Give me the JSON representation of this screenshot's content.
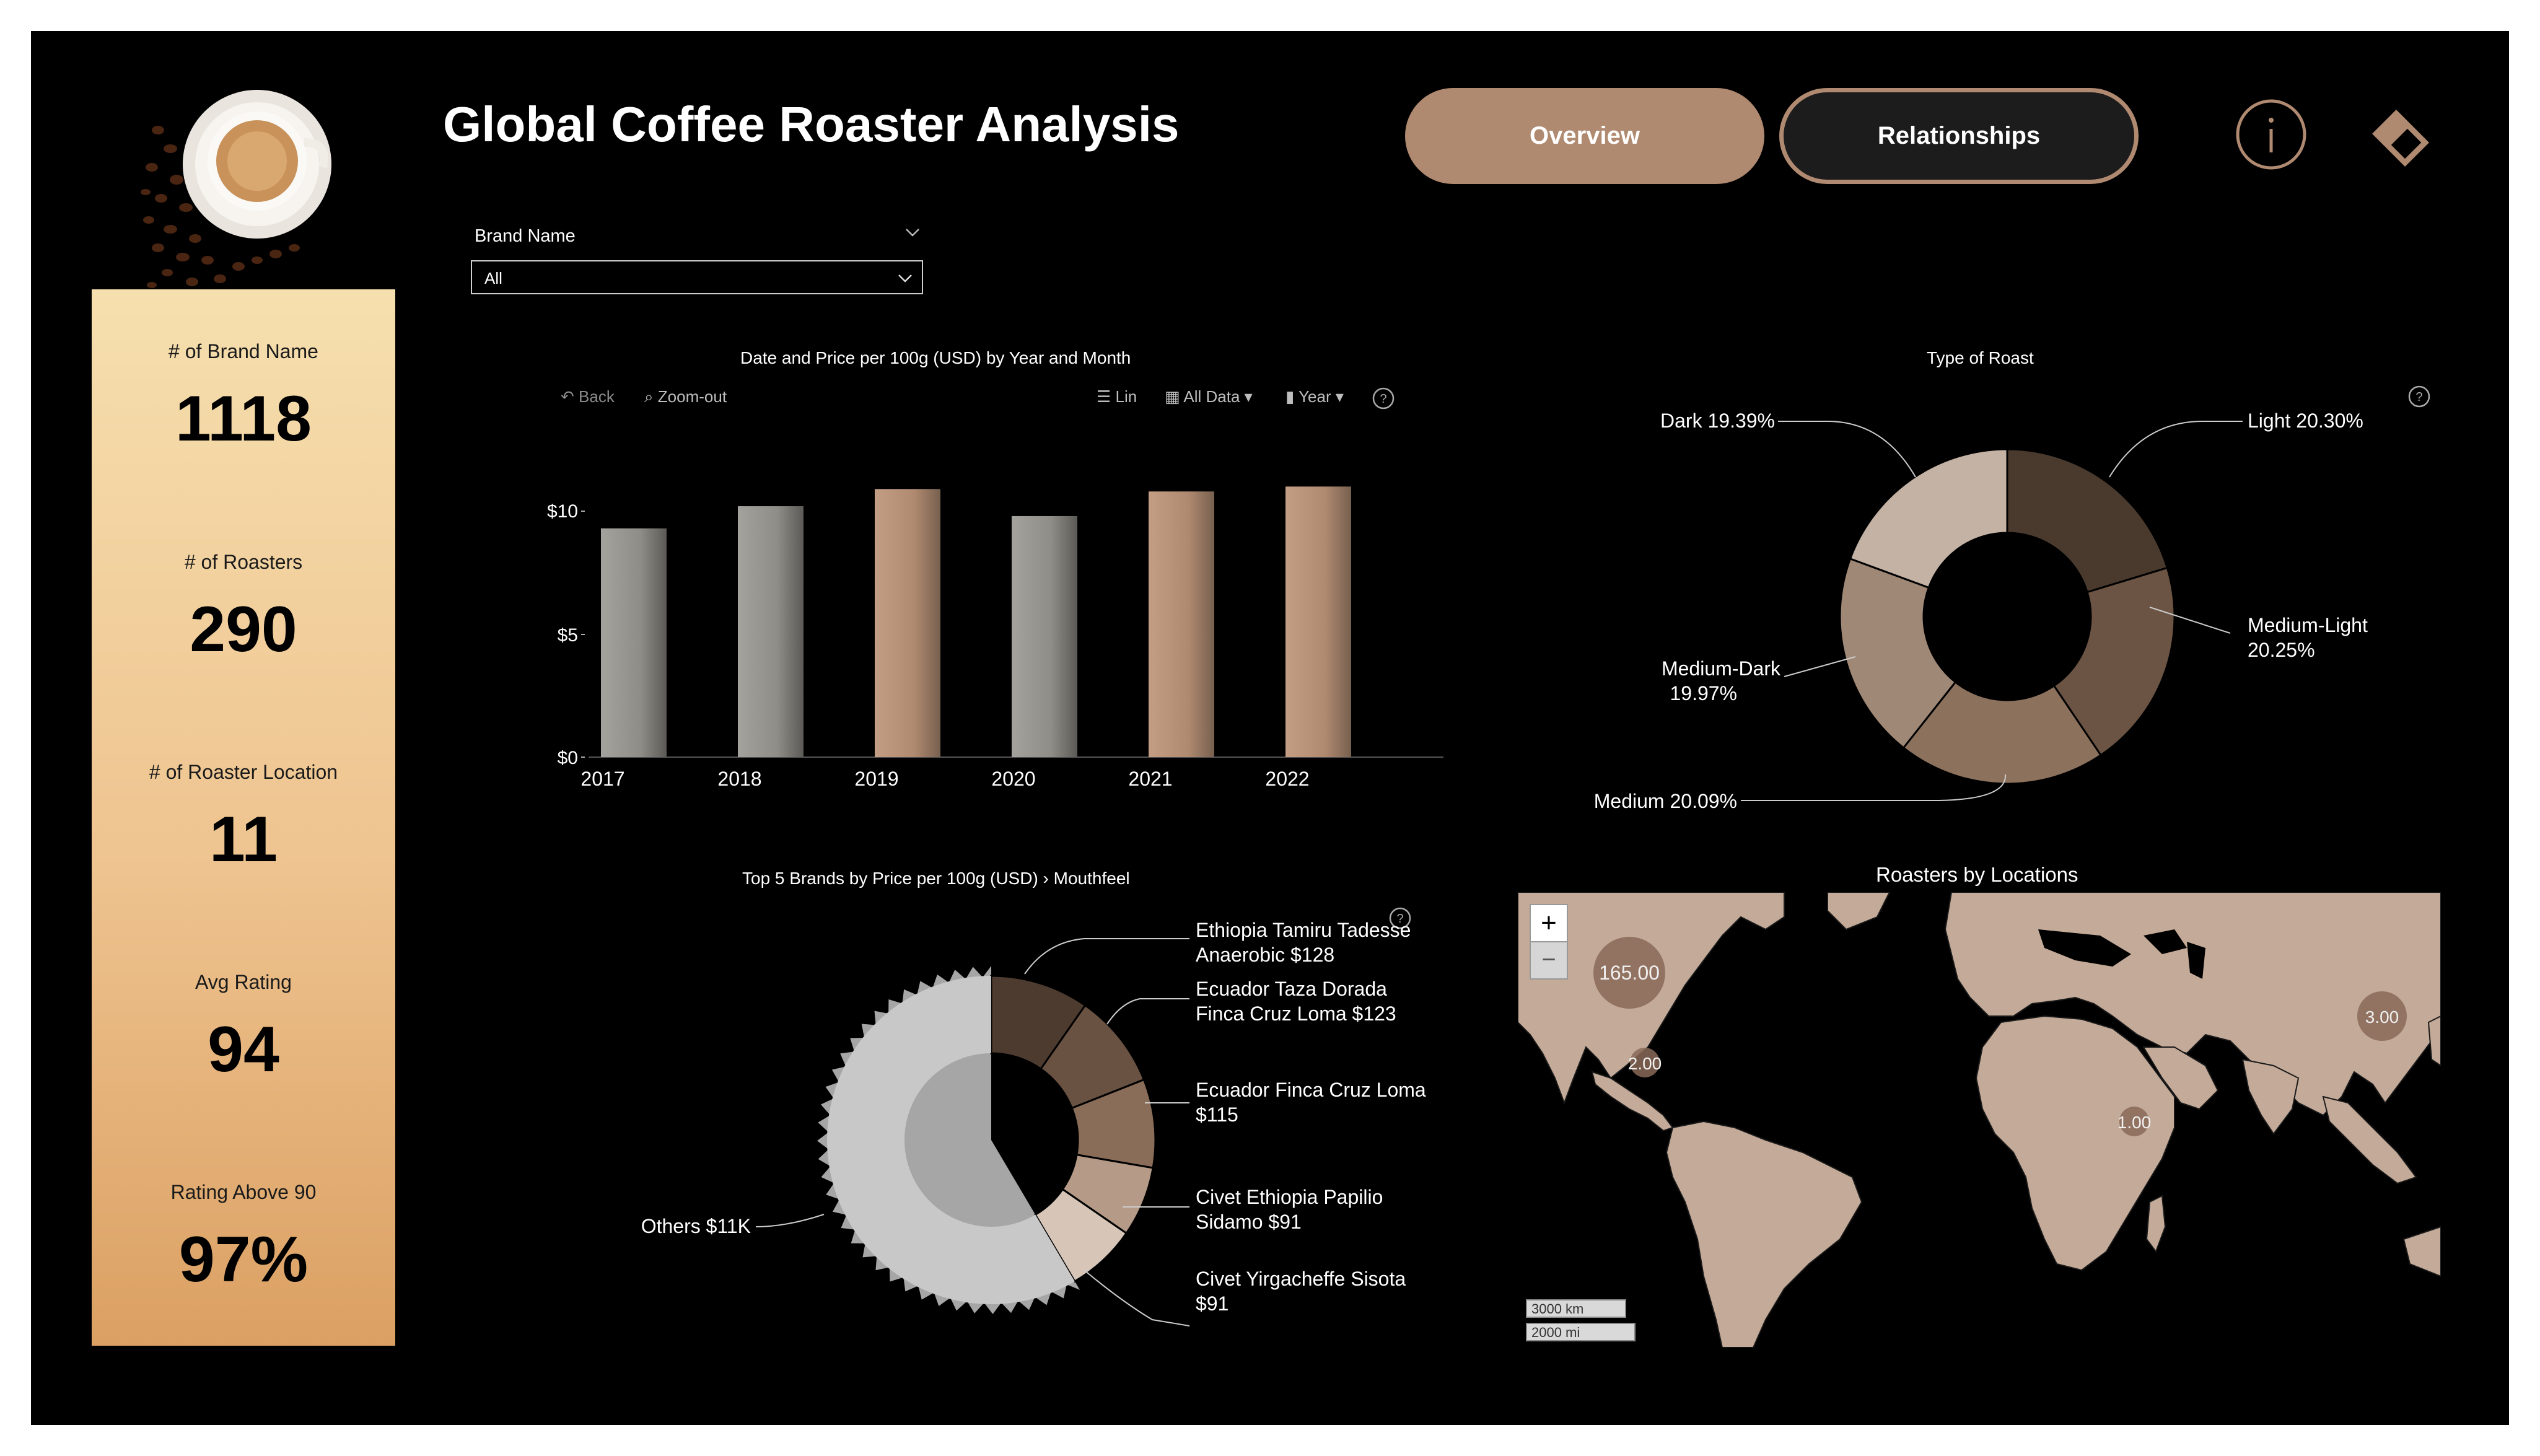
{
  "header": {
    "title": "Global Coffee Roaster Analysis",
    "nav_overview": "Overview",
    "nav_relationships": "Relationships",
    "info_icon": "info-icon",
    "bookmark_icon": "diamond-icon"
  },
  "kpis": [
    {
      "label": "# of Brand Name",
      "value": "1118"
    },
    {
      "label": "# of Roasters",
      "value": "290"
    },
    {
      "label": "# of Roaster Location",
      "value": "11"
    },
    {
      "label": "Avg Rating",
      "value": "94"
    },
    {
      "label": "Rating Above 90",
      "value": "97%"
    }
  ],
  "slicer": {
    "label": "Brand Name",
    "value": "All"
  },
  "bar_chart": {
    "title": "Date and Price per 100g (USD) by Year and Month",
    "toolbar": {
      "back": "Back",
      "zoom_out": "Zoom-out",
      "lin": "Lin",
      "all_data": "All Data",
      "year": "Year"
    },
    "yticks": [
      "$10",
      "$5",
      "$0"
    ]
  },
  "donut_chart": {
    "title": "Type of Roast",
    "labels": [
      {
        "name": "Light",
        "pct": "20.30%"
      },
      {
        "name": "Medium-Light",
        "pct": "20.25%"
      },
      {
        "name": "Medium",
        "pct": "20.09%"
      },
      {
        "name": "Medium-Dark",
        "pct": "19.97%"
      },
      {
        "name": "Dark",
        "pct": "19.39%"
      }
    ]
  },
  "brands_chart": {
    "title": "Top 5 Brands by Price per 100g (USD) › Mouthfeel",
    "labels": [
      {
        "line1": "Ethiopia Tamiru Tadesse",
        "line2": "Anaerobic $128"
      },
      {
        "line1": "Ecuador Taza Dorada",
        "line2": "Finca Cruz Loma $123"
      },
      {
        "line1": "Ecuador Finca Cruz Loma",
        "line2": "$115"
      },
      {
        "line1": "Civet Ethiopia Papilio",
        "line2": "Sidamo $91"
      },
      {
        "line1": "Civet Yirgacheffe Sisota",
        "line2": "$91"
      },
      {
        "line1": "Others $11K",
        "line2": ""
      }
    ]
  },
  "map": {
    "title": "Roasters by Locations",
    "zoom_in": "+",
    "zoom_out": "−",
    "scale_km": "3000 km",
    "scale_mi": "2000 mi",
    "bubbles": [
      {
        "label": "165.00",
        "region": "United States"
      },
      {
        "label": "2.00",
        "region": "Central America"
      },
      {
        "label": "1.00",
        "region": "East Africa"
      },
      {
        "label": "3.00",
        "region": "East Asia"
      }
    ]
  },
  "chart_data": [
    {
      "type": "bar",
      "title": "Date and Price per 100g (USD) by Year and Month",
      "categories": [
        "2017",
        "2018",
        "2019",
        "2020",
        "2021",
        "2022"
      ],
      "values": [
        9.3,
        10.2,
        10.9,
        9.8,
        10.8,
        11.0
      ],
      "colors": [
        "#8f8d87",
        "#8f8d87",
        "#b08a70",
        "#8f8d87",
        "#b08a70",
        "#b08a70"
      ],
      "ylim": [
        0,
        11
      ],
      "yticks": [
        0,
        5,
        10
      ],
      "grid": false
    },
    {
      "type": "pie",
      "title": "Type of Roast",
      "categories": [
        "Light",
        "Medium-Light",
        "Medium",
        "Medium-Dark",
        "Dark"
      ],
      "values": [
        20.3,
        20.25,
        20.09,
        19.97,
        19.39
      ],
      "colors": [
        "#4a3a2e",
        "#6b5444",
        "#8c715d",
        "#a08876",
        "#c4b2a4"
      ]
    },
    {
      "type": "pie",
      "title": "Top 5 Brands by Price per 100g (USD) › Mouthfeel",
      "categories": [
        "Ethiopia Tamiru Tadesse Anaerobic",
        "Ecuador Taza Dorada Finca Cruz Loma",
        "Ecuador Finca Cruz Loma",
        "Civet Ethiopia Papilio Sidamo",
        "Civet Yirgacheffe Sisota",
        "Others"
      ],
      "values": [
        128,
        123,
        115,
        91,
        91,
        11000
      ],
      "colors": [
        "#4d3b2f",
        "#6a5242",
        "#8a6d58",
        "#b49a87",
        "#d7c6b8",
        "#c8c8c8"
      ]
    }
  ]
}
